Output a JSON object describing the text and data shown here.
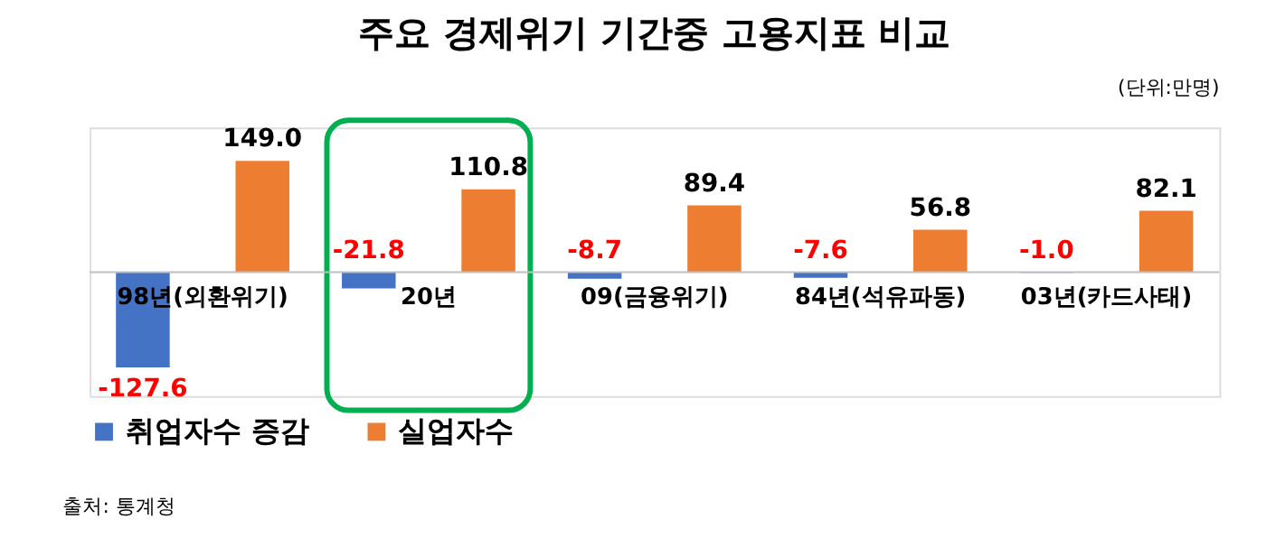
{
  "chart_data": {
    "type": "bar",
    "title": "주요 경제위기 기간중 고용지표 비교",
    "categories": [
      "98년(외환위기)",
      "20년",
      "09(금융위기)",
      "84년(석유파동)",
      "03년(카드사태)"
    ],
    "series": [
      {
        "name": "취업자수 증감",
        "color": "#4472c4",
        "values": [
          -127.6,
          -21.8,
          -8.7,
          -7.6,
          -1.0
        ],
        "value_labels": [
          "-127.6",
          "-21.8",
          "-8.7",
          "-7.6",
          "-1.0"
        ]
      },
      {
        "name": "실업자수",
        "color": "#ed7d31",
        "values": [
          149.0,
          110.8,
          89.4,
          56.8,
          82.1
        ],
        "value_labels": [
          "149.0",
          "110.8",
          "89.4",
          "56.8",
          "82.1"
        ]
      }
    ],
    "legend": "bottom",
    "annotations": [
      "(단위:만명)",
      "출처: 통계청"
    ]
  }
}
